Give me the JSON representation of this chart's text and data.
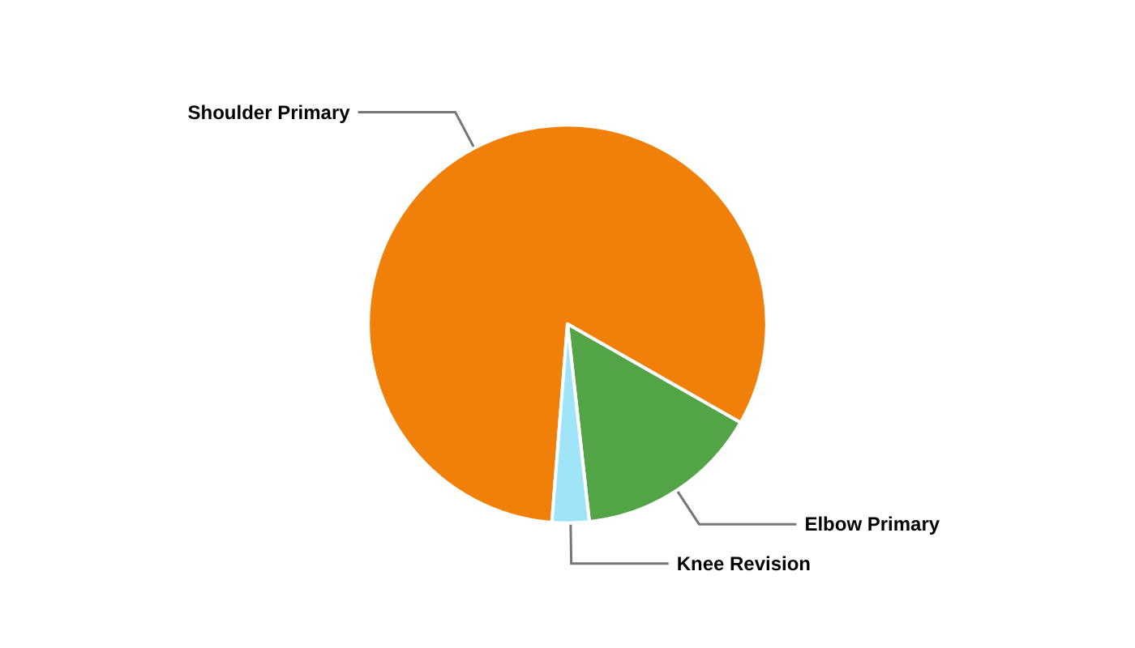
{
  "chart_data": {
    "type": "pie",
    "categories": [
      "Shoulder Primary",
      "Elbow Primary",
      "Knee Revision"
    ],
    "values": [
      82,
      15,
      3
    ],
    "colors": [
      "#f0800a",
      "#52a447",
      "#a0e4f8"
    ],
    "legend": false
  }
}
